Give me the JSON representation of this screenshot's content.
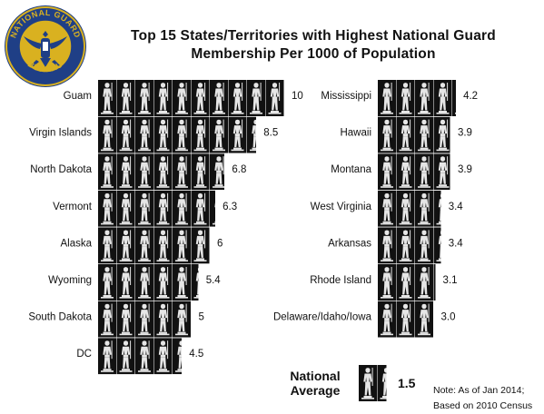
{
  "title": "Top 15 States/Territories with Highest National Guard Membership Per 1000 of Population",
  "logo": {
    "top_text": "NATIONAL GUARD",
    "bottom_text": "BUREAU"
  },
  "national_average": {
    "label_line1": "National",
    "label_line2": "Average",
    "value": 1.5,
    "value_label": "1.5"
  },
  "note": {
    "line1": "Note: As of Jan 2014;",
    "line2": "Based on 2010 Census"
  },
  "colors": {
    "icon_bg": "#111111",
    "icon_fg": "#e6e6e6",
    "logo_ring": "#1f3f86",
    "logo_gold": "#d9b120"
  },
  "chart_data": {
    "type": "bar",
    "icon": "guard-soldier-icon",
    "units_per_icon": 1,
    "left_column": [
      {
        "category": "Guam",
        "value": 10,
        "label": "10"
      },
      {
        "category": "Virgin Islands",
        "value": 8.5,
        "label": "8.5"
      },
      {
        "category": "North Dakota",
        "value": 6.8,
        "label": "6.8"
      },
      {
        "category": "Vermont",
        "value": 6.3,
        "label": "6.3"
      },
      {
        "category": "Alaska",
        "value": 6,
        "label": "6"
      },
      {
        "category": "Wyoming",
        "value": 5.4,
        "label": "5.4"
      },
      {
        "category": "South Dakota",
        "value": 5,
        "label": "5"
      },
      {
        "category": "DC",
        "value": 4.5,
        "label": "4.5"
      }
    ],
    "right_column": [
      {
        "category": "Mississippi",
        "value": 4.2,
        "label": "4.2"
      },
      {
        "category": "Hawaii",
        "value": 3.9,
        "label": "3.9"
      },
      {
        "category": "Montana",
        "value": 3.9,
        "label": "3.9"
      },
      {
        "category": "West Virginia",
        "value": 3.4,
        "label": "3.4"
      },
      {
        "category": "Arkansas",
        "value": 3.4,
        "label": "3.4"
      },
      {
        "category": "Rhode Island",
        "value": 3.1,
        "label": "3.1"
      },
      {
        "category": "Delaware/Idaho/Iowa",
        "value": 3.0,
        "label": "3.0"
      }
    ]
  }
}
